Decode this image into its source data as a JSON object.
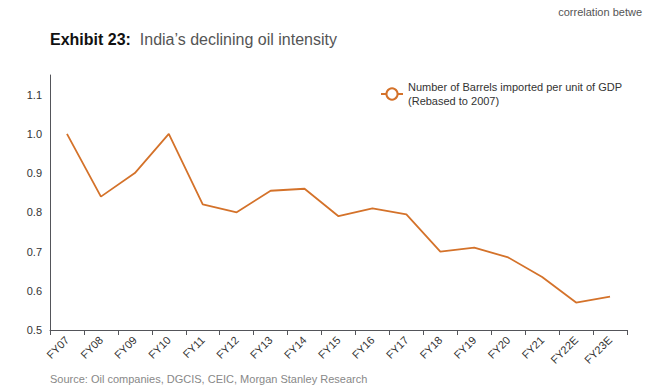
{
  "chart_data": {
    "type": "line",
    "title": "Exhibit 23:",
    "subtitle": "India’s declining oil intensity",
    "annotations": [
      "correlation betwe",
      "Source: Oil companies, DGCIS, CEIC, Morgan Stanley Research"
    ],
    "categories": [
      "FY07",
      "FY08",
      "FY09",
      "FY10",
      "FY11",
      "FY12",
      "FY13",
      "FY14",
      "FY15",
      "FY16",
      "FY17",
      "FY18",
      "FY19",
      "FY20",
      "FY21",
      "FY22E",
      "FY23E"
    ],
    "series": [
      {
        "name": "Number of Barrels imported per unit of GDP\n(Rebased to 2007)",
        "color": "#D4722A",
        "values": [
          1.0,
          0.84,
          0.9,
          1.0,
          0.82,
          0.8,
          0.855,
          0.86,
          0.79,
          0.81,
          0.795,
          0.7,
          0.71,
          0.685,
          0.635,
          0.57,
          0.585
        ]
      }
    ],
    "ylim": [
      0.5,
      1.15
    ],
    "yticks": [
      0.5,
      0.6,
      0.7,
      0.8,
      0.9,
      {
        "value": 1,
        "label": "1.0"
      },
      1.1
    ],
    "grid": false,
    "legend": "upper right"
  }
}
